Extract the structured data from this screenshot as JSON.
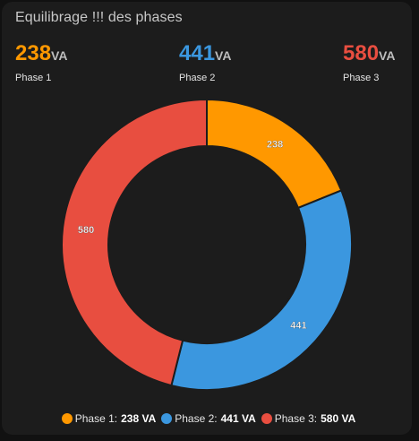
{
  "card": {
    "title": "Equilibrage !!! des phases"
  },
  "metrics": [
    {
      "value": "238",
      "unit": "VA",
      "label": "Phase 1",
      "color": "#ff9800"
    },
    {
      "value": "441",
      "unit": "VA",
      "label": "Phase 2",
      "color": "#3b97df"
    },
    {
      "value": "580",
      "unit": "VA",
      "label": "Phase 3",
      "color": "#e84e40"
    }
  ],
  "legend": [
    {
      "name": "Phase 1:",
      "value": "238 VA",
      "color": "#ff9800"
    },
    {
      "name": "Phase 2:",
      "value": "441 VA",
      "color": "#3b97df"
    },
    {
      "name": "Phase 3:",
      "value": "580 VA",
      "color": "#e84e40"
    }
  ],
  "chart_data": {
    "type": "pie",
    "variant": "donut",
    "categories": [
      "Phase 1",
      "Phase 2",
      "Phase 3"
    ],
    "values": [
      238,
      441,
      580
    ],
    "data_labels": [
      "238",
      "441",
      "580"
    ],
    "colors": [
      "#ff9800",
      "#3b97df",
      "#e84e40"
    ],
    "unit": "VA",
    "legend_position": "bottom"
  }
}
